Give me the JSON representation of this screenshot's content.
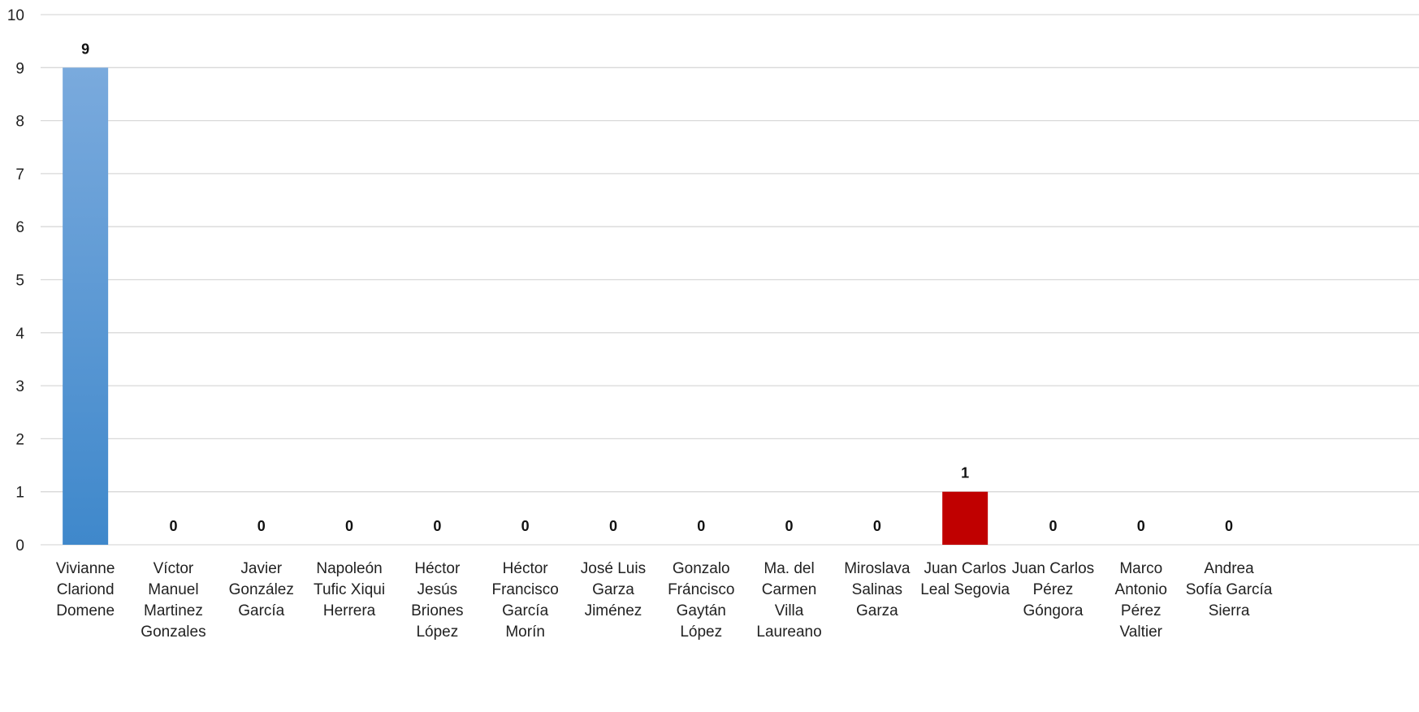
{
  "chart_data": {
    "type": "bar",
    "title": "",
    "xlabel": "",
    "ylabel": "",
    "ylim": [
      0,
      10
    ],
    "yticks": [
      0,
      1,
      2,
      3,
      4,
      5,
      6,
      7,
      8,
      9,
      10
    ],
    "grid": true,
    "legend": "none",
    "categories": [
      [
        "Vivianne",
        "Clariond",
        "Domene"
      ],
      [
        "Víctor",
        "Manuel",
        "Martinez",
        "Gonzales"
      ],
      [
        "Javier",
        "González",
        "García"
      ],
      [
        "Napoleón",
        "Tufic Xiqui",
        "Herrera"
      ],
      [
        "Héctor",
        "Jesús",
        "Briones",
        "López"
      ],
      [
        "Héctor",
        "Francisco",
        "García",
        "Morín"
      ],
      [
        "José Luis",
        "Garza",
        "Jiménez"
      ],
      [
        "Gonzalo",
        "Fráncisco",
        "Gaytán",
        "López"
      ],
      [
        "Ma. del",
        "Carmen",
        "Villa",
        "Laureano"
      ],
      [
        "Miroslava",
        "Salinas",
        "Garza"
      ],
      [
        "Juan Carlos",
        "Leal Segovia"
      ],
      [
        "Juan Carlos",
        "Pérez",
        "Góngora"
      ],
      [
        "Marco",
        "Antonio",
        "Pérez",
        "Valtier"
      ],
      [
        "Andrea",
        "Sofía García",
        "Sierra"
      ]
    ],
    "values": [
      9,
      0,
      0,
      0,
      0,
      0,
      0,
      0,
      0,
      0,
      1,
      0,
      0,
      0
    ],
    "data_labels": [
      "9",
      "0",
      "0",
      "0",
      "0",
      "0",
      "0",
      "0",
      "0",
      "0",
      "1",
      "0",
      "0",
      "0"
    ],
    "colors": {
      "default_bar_top": "#7aaadd",
      "default_bar_bottom": "#3f88cb",
      "highlight_bar": "#c00000"
    },
    "highlight_index": 10
  }
}
